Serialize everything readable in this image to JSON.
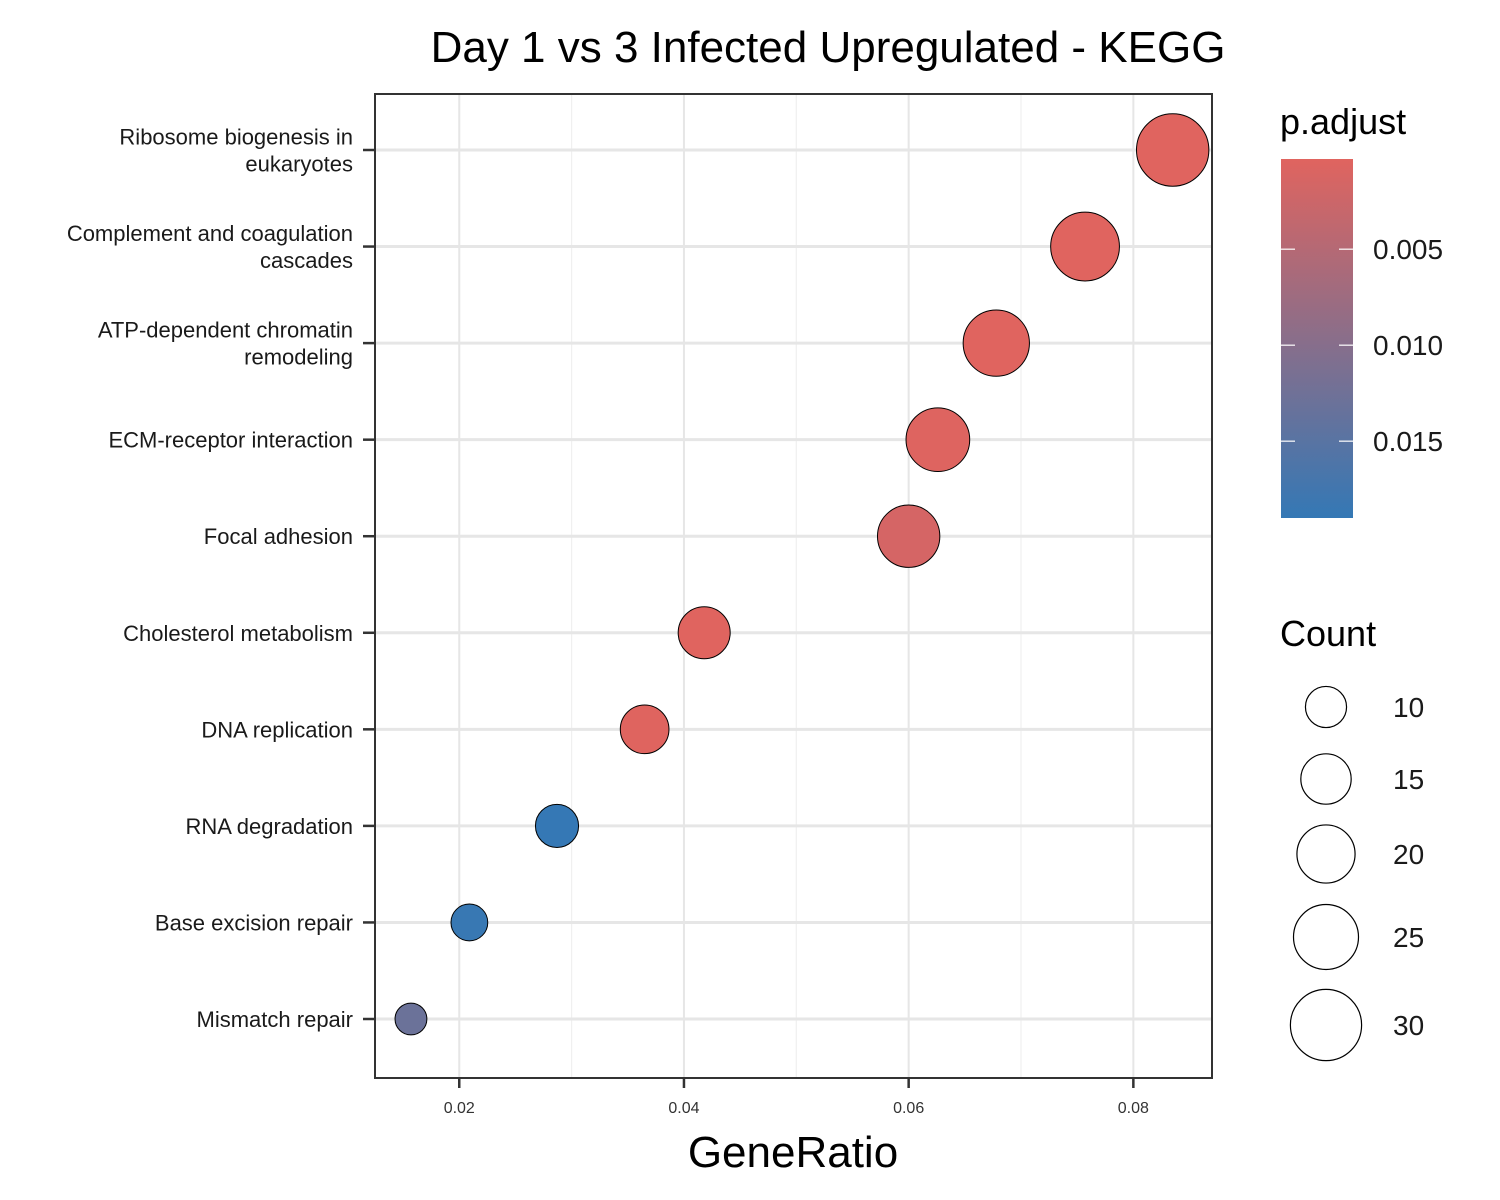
{
  "chart_data": {
    "type": "scatter",
    "title": "Day 1 vs 3 Infected Upregulated - KEGG",
    "xlabel": "GeneRatio",
    "ylabel": "",
    "xlim": [
      0.0125,
      0.087
    ],
    "x_ticks": [
      0.02,
      0.04,
      0.06,
      0.08
    ],
    "x_tick_labels": [
      "0.02",
      "0.04",
      "0.06",
      "0.08"
    ],
    "grid": true,
    "categories": [
      [
        "Ribosome biogenesis in",
        "eukaryotes"
      ],
      [
        "Complement and coagulation",
        "cascades"
      ],
      [
        "ATP-dependent chromatin",
        "remodeling"
      ],
      [
        "ECM-receptor interaction"
      ],
      [
        "Focal adhesion"
      ],
      [
        "Cholesterol metabolism"
      ],
      [
        "DNA replication"
      ],
      [
        "RNA degradation"
      ],
      [
        "Base excision repair"
      ],
      [
        "Mismatch repair"
      ]
    ],
    "points": [
      {
        "x": 0.0835,
        "count": 31,
        "p_adjust": 0.0003
      },
      {
        "x": 0.0757,
        "count": 28,
        "p_adjust": 0.0003
      },
      {
        "x": 0.0678,
        "count": 26,
        "p_adjust": 0.0003
      },
      {
        "x": 0.0626,
        "count": 24,
        "p_adjust": 0.0005
      },
      {
        "x": 0.06,
        "count": 23,
        "p_adjust": 0.0015
      },
      {
        "x": 0.0418,
        "count": 16,
        "p_adjust": 0.0003
      },
      {
        "x": 0.0365,
        "count": 14,
        "p_adjust": 0.0004
      },
      {
        "x": 0.0287,
        "count": 11,
        "p_adjust": 0.0189
      },
      {
        "x": 0.0209,
        "count": 8,
        "p_adjust": 0.0186
      },
      {
        "x": 0.0157,
        "count": 6,
        "p_adjust": 0.013
      }
    ],
    "color_legend": {
      "title": "p.adjust",
      "ticks": [
        0.005,
        0.01,
        0.015
      ],
      "tick_labels": [
        "0.005",
        "0.010",
        "0.015"
      ],
      "range": [
        0.0003,
        0.019
      ],
      "low_color": "#e0645f",
      "high_color": "#3478b5"
    },
    "size_legend": {
      "title": "Count",
      "values": [
        10,
        15,
        20,
        25,
        30
      ],
      "labels": [
        "10",
        "15",
        "20",
        "25",
        "30"
      ]
    },
    "legend_position": "right"
  }
}
